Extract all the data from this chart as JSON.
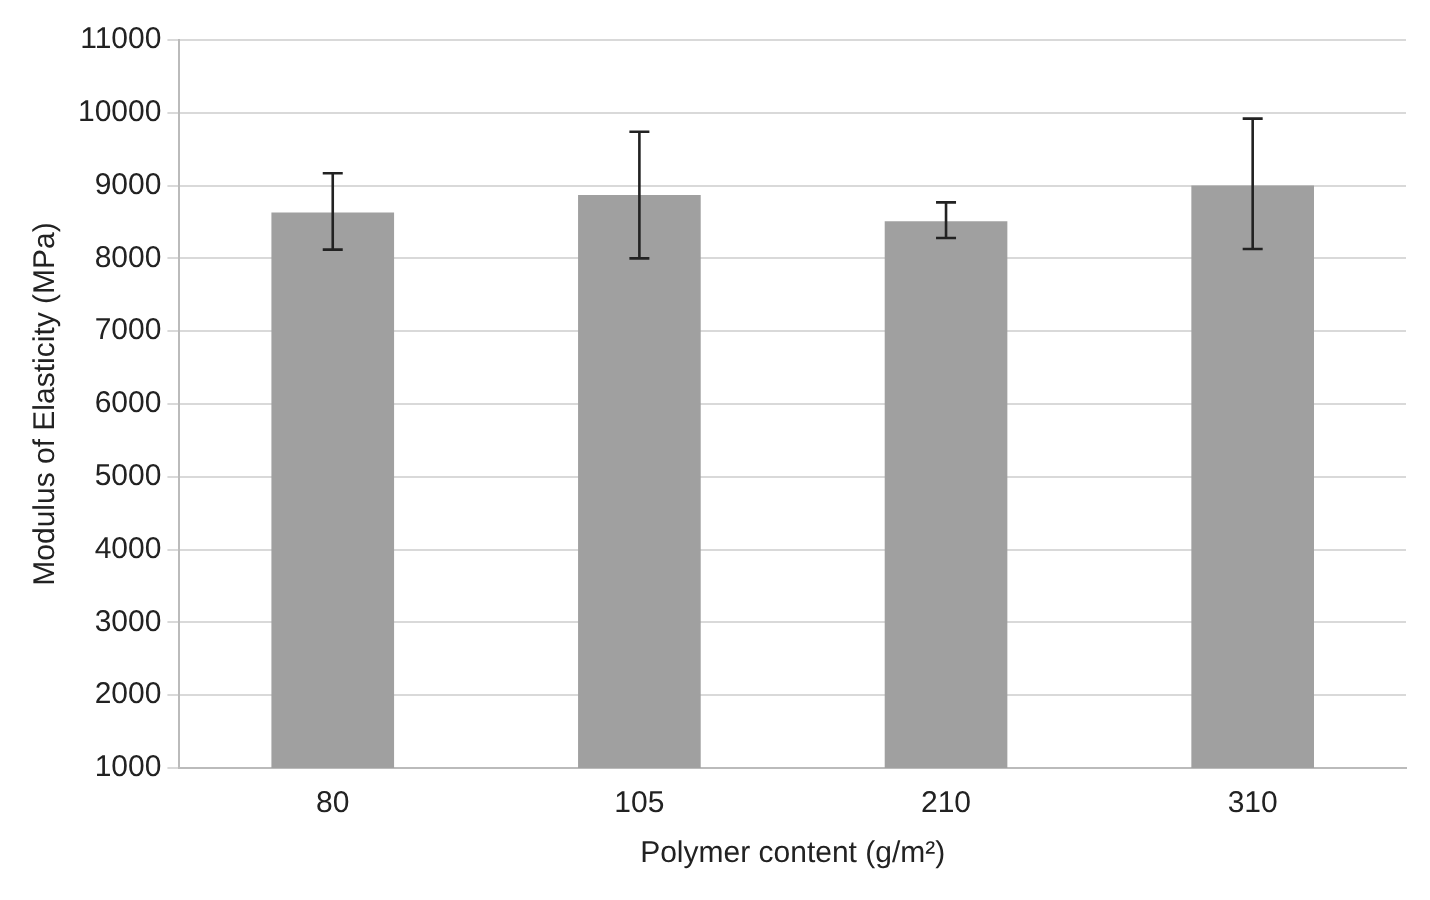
{
  "chart_data": {
    "type": "bar",
    "xlabel": "Polymer content (g/m²)",
    "ylabel": "Modulus of Elasticity (MPa)",
    "categories": [
      "80",
      "105",
      "210",
      "310"
    ],
    "values": [
      8630,
      8870,
      8510,
      9000
    ],
    "errors": [
      [
        8120,
        9170
      ],
      [
        8000,
        9740
      ],
      [
        8280,
        8770
      ],
      [
        8130,
        9920
      ]
    ],
    "color": "#a0a0a0",
    "ylim": [
      1000,
      11000
    ],
    "yticks": [
      1000,
      2000,
      3000,
      4000,
      5000,
      6000,
      7000,
      8000,
      9000,
      10000,
      11000
    ],
    "grid": "y",
    "legend": false
  }
}
